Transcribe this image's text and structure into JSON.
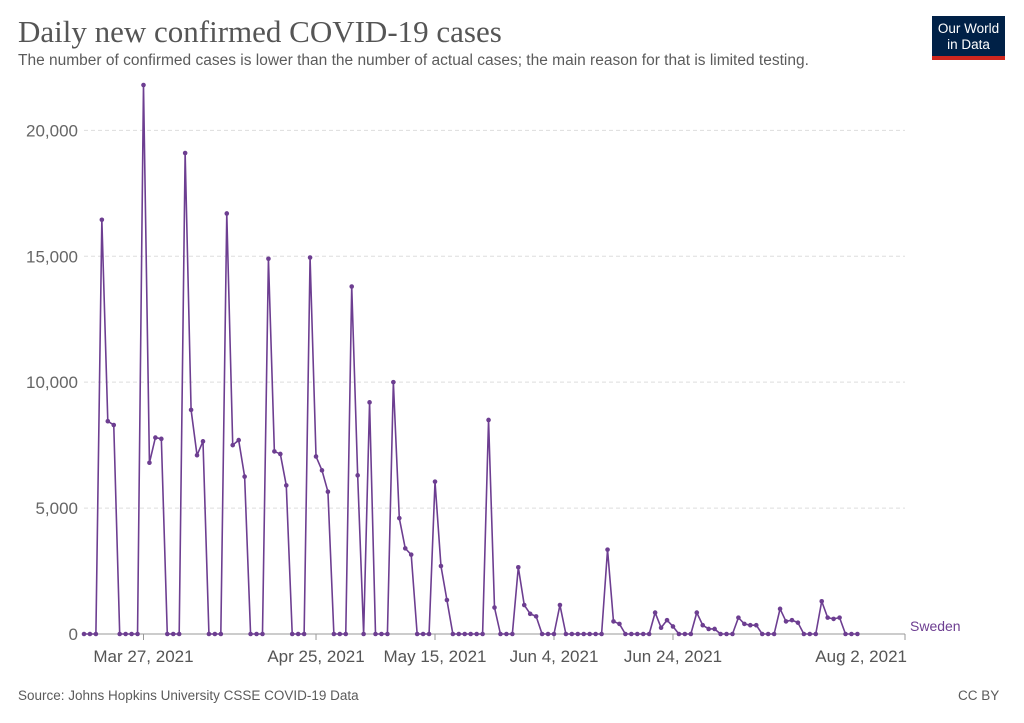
{
  "header": {
    "title": "Daily new confirmed COVID-19 cases",
    "subtitle": "The number of confirmed cases is lower than the number of actual cases; the main reason for that is limited testing."
  },
  "logo": {
    "line1": "Our World",
    "line2": "in Data"
  },
  "footer": {
    "source": "Source: Johns Hopkins University CSSE COVID-19 Data",
    "license": "CC BY"
  },
  "colors": {
    "series": "#6d3e91",
    "grid": "#dddddd",
    "logo_bg": "#002147",
    "logo_accent": "#ce261e"
  },
  "chart_data": {
    "type": "line",
    "title": "Daily new confirmed COVID-19 cases",
    "subtitle": "The number of confirmed cases is lower than the number of actual cases; the main reason for that is limited testing.",
    "xlabel": "",
    "ylabel": "",
    "ylim": [
      0,
      22000
    ],
    "yticks": [
      0,
      5000,
      10000,
      15000,
      20000
    ],
    "ytick_labels": [
      "0",
      "5,000",
      "10,000",
      "15,000",
      "20,000"
    ],
    "xticks": [
      "2021-03-27",
      "2021-04-25",
      "2021-05-15",
      "2021-06-04",
      "2021-06-24",
      "2021-08-02"
    ],
    "xtick_labels": [
      "Mar 27, 2021",
      "Apr 25, 2021",
      "May 15, 2021",
      "Jun 4, 2021",
      "Jun 24, 2021",
      "Aug 2, 2021"
    ],
    "grid": "horizontal dashed",
    "legend": "end-of-line label",
    "series": [
      {
        "name": "Sweden",
        "start_date": "2021-03-17",
        "end_date": "2021-08-02",
        "values": [
          0,
          0,
          0,
          16450,
          8450,
          8300,
          0,
          0,
          0,
          0,
          21800,
          6800,
          7800,
          7750,
          0,
          0,
          0,
          19100,
          8900,
          7100,
          7650,
          0,
          0,
          0,
          16700,
          7500,
          7700,
          6250,
          0,
          0,
          0,
          14900,
          7250,
          7150,
          5900,
          0,
          0,
          0,
          14950,
          7050,
          6500,
          5650,
          0,
          0,
          0,
          13800,
          6300,
          0,
          9200,
          0,
          0,
          0,
          10000,
          4600,
          3400,
          3150,
          0,
          0,
          0,
          6050,
          2700,
          1350,
          0,
          0,
          0,
          0,
          0,
          0,
          8500,
          1050,
          0,
          0,
          0,
          2650,
          1150,
          800,
          700,
          0,
          0,
          0,
          1150,
          0,
          0,
          0,
          0,
          0,
          0,
          0,
          3350,
          500,
          400,
          0,
          0,
          0,
          0,
          0,
          850,
          250,
          550,
          300,
          0,
          0,
          0,
          850,
          350,
          200,
          200,
          0,
          0,
          0,
          650,
          400,
          350,
          350,
          0,
          0,
          0,
          1000,
          500,
          550,
          450,
          0,
          0,
          0,
          1300,
          650,
          600,
          650,
          0,
          0,
          0
        ]
      }
    ]
  }
}
